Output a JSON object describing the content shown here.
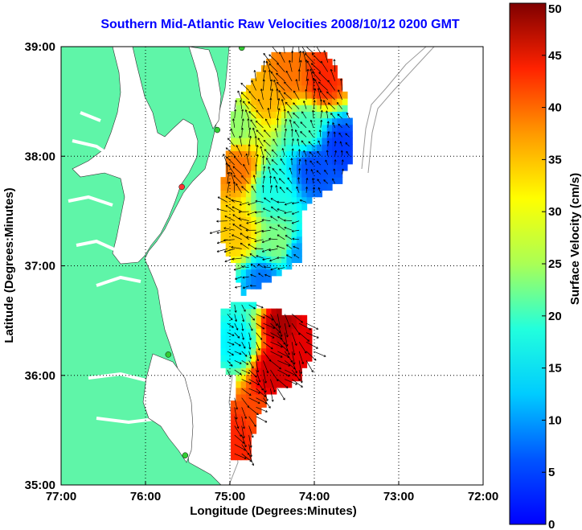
{
  "title": "Southern Mid-Atlantic Raw Velocities 2008/10/12 0200 GMT",
  "map": {
    "lon_range": [
      -77,
      -72
    ],
    "lat_range": [
      35,
      39
    ],
    "x_ticks": [
      {
        "lon": -77,
        "label": "77:00"
      },
      {
        "lon": -76,
        "label": "76:00"
      },
      {
        "lon": -75,
        "label": "75:00"
      },
      {
        "lon": -74,
        "label": "74:00"
      },
      {
        "lon": -73,
        "label": "73:00"
      },
      {
        "lon": -72,
        "label": "72:00"
      }
    ],
    "y_ticks": [
      {
        "lat": 39,
        "label": "39:00"
      },
      {
        "lat": 38,
        "label": "38:00"
      },
      {
        "lat": 37,
        "label": "37:00"
      },
      {
        "lat": 36,
        "label": "36:00"
      },
      {
        "lat": 35,
        "label": "35:00"
      }
    ],
    "xlabel": "Longitude (Degrees:Minutes)",
    "ylabel": "Latitude (Degrees:Minutes)",
    "grid": "dotted",
    "land_color": "#5ff5a8",
    "water_color": "#ffffff",
    "stations": [
      {
        "lon": -74.86,
        "lat": 38.99,
        "color": "#33cc33"
      },
      {
        "lon": -75.15,
        "lat": 38.24,
        "color": "#33cc33"
      },
      {
        "lon": -75.57,
        "lat": 37.72,
        "color": "#ff3333"
      },
      {
        "lon": -75.73,
        "lat": 36.19,
        "color": "#33cc33"
      },
      {
        "lon": -75.53,
        "lat": 35.27,
        "color": "#33cc33"
      }
    ]
  },
  "colorbar": {
    "label": "Surface Velocity (cm/s)",
    "min": 0,
    "max": 50,
    "ticks": [
      0,
      5,
      10,
      15,
      20,
      25,
      30,
      35,
      40,
      45,
      50
    ],
    "tick_labels": [
      "0",
      "5",
      "10",
      "15",
      "20",
      "25",
      "30",
      "35",
      "40",
      "45",
      "50"
    ],
    "colormap": "jet"
  },
  "chart_data": {
    "type": "heatmap",
    "title": "Southern Mid-Atlantic Raw Velocities 2008/10/12 0200 GMT",
    "xlabel": "Longitude (Degrees:Minutes)",
    "ylabel": "Latitude (Degrees:Minutes)",
    "xlim": [
      -77,
      -72
    ],
    "ylim": [
      35,
      39
    ],
    "value_label": "Surface Velocity (cm/s)",
    "value_range": [
      0,
      50
    ],
    "regions": [
      {
        "lon": -74.3,
        "lat": 38.75,
        "speed": 38
      },
      {
        "lon": -73.9,
        "lat": 38.7,
        "speed": 42
      },
      {
        "lon": -74.6,
        "lat": 38.55,
        "speed": 35
      },
      {
        "lon": -74.9,
        "lat": 38.3,
        "speed": 26
      },
      {
        "lon": -74.1,
        "lat": 38.25,
        "speed": 22
      },
      {
        "lon": -73.7,
        "lat": 38.1,
        "speed": 9
      },
      {
        "lon": -74.0,
        "lat": 37.9,
        "speed": 10
      },
      {
        "lon": -74.9,
        "lat": 37.9,
        "speed": 38
      },
      {
        "lon": -74.5,
        "lat": 37.7,
        "speed": 20
      },
      {
        "lon": -74.9,
        "lat": 37.3,
        "speed": 34
      },
      {
        "lon": -74.4,
        "lat": 37.2,
        "speed": 25
      },
      {
        "lon": -74.2,
        "lat": 37.1,
        "speed": 14
      },
      {
        "lon": -74.6,
        "lat": 36.85,
        "speed": 12
      },
      {
        "lon": -74.4,
        "lat": 36.5,
        "speed": 48
      },
      {
        "lon": -74.1,
        "lat": 36.3,
        "speed": 45
      },
      {
        "lon": -74.9,
        "lat": 36.3,
        "speed": 18
      },
      {
        "lon": -74.5,
        "lat": 36.05,
        "speed": 46
      },
      {
        "lon": -74.6,
        "lat": 35.6,
        "speed": 40
      },
      {
        "lon": -74.9,
        "lat": 35.4,
        "speed": 42
      }
    ]
  }
}
